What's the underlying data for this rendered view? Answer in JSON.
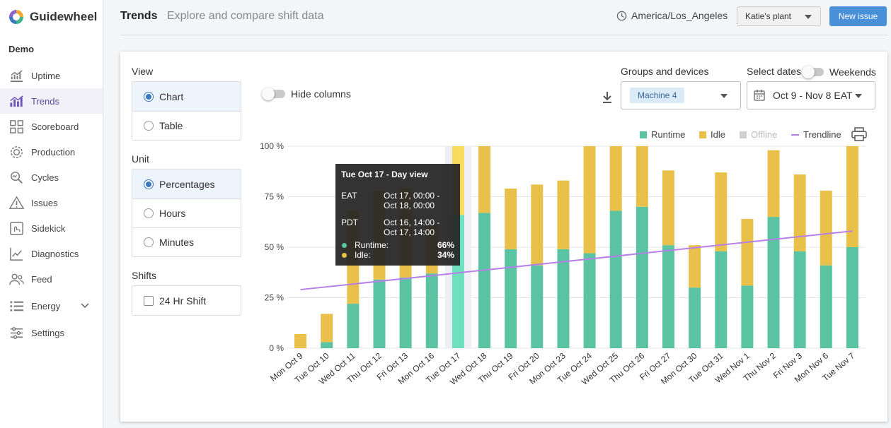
{
  "app": {
    "name": "Guidewheel",
    "org": "Demo"
  },
  "nav": [
    {
      "label": "Uptime",
      "icon": "uptime-icon"
    },
    {
      "label": "Trends",
      "icon": "trends-icon",
      "active": true
    },
    {
      "label": "Scoreboard",
      "icon": "scoreboard-icon"
    },
    {
      "label": "Production",
      "icon": "production-icon"
    },
    {
      "label": "Cycles",
      "icon": "cycles-icon"
    },
    {
      "label": "Issues",
      "icon": "issues-icon"
    },
    {
      "label": "Sidekick",
      "icon": "sidekick-icon"
    },
    {
      "label": "Diagnostics",
      "icon": "diagnostics-icon"
    },
    {
      "label": "Feed",
      "icon": "feed-icon"
    },
    {
      "label": "Energy",
      "icon": "energy-icon"
    },
    {
      "label": "Settings",
      "icon": "settings-icon"
    }
  ],
  "header": {
    "title": "Trends",
    "subtitle": "Explore and compare shift data",
    "timezone": "America/Los_Angeles",
    "plant": "Katie's plant",
    "new_issue": "New issue"
  },
  "controls": {
    "view_label": "View",
    "view_options": [
      "Chart",
      "Table"
    ],
    "unit_label": "Unit",
    "unit_options": [
      "Percentages",
      "Hours",
      "Minutes"
    ],
    "shifts_label": "Shifts",
    "shift_option": "24 Hr Shift",
    "hide_columns": "Hide columns",
    "groups_label": "Groups and devices",
    "device_chip": "Machine 4",
    "dates_label": "Select dates",
    "weekends": "Weekends",
    "date_range": "Oct 9 - Nov 8 EAT"
  },
  "colors": {
    "runtime": "#5ac3a1",
    "idle": "#e9c14a",
    "offline": "#d0d0d0",
    "trendline": "#b77fe8",
    "highlight_runtime": "#6fe0bd",
    "highlight_idle": "#f7dc5c",
    "accent": "#4a90d9"
  },
  "tooltip": {
    "title": "Tue Oct 17 - Day view",
    "tz1": "EAT",
    "tz1_range_a": "Oct 17, 00:00 -",
    "tz1_range_b": "Oct 18, 00:00",
    "tz2": "PDT",
    "tz2_range_a": "Oct 16, 14:00 -",
    "tz2_range_b": "Oct 17, 14:00",
    "runtime_label": "Runtime:",
    "runtime_value": "66%",
    "idle_label": "Idle:",
    "idle_value": "34%"
  },
  "chart_data": {
    "type": "bar",
    "stacked": true,
    "categories": [
      "Mon Oct 9",
      "Tue Oct 10",
      "Wed Oct 11",
      "Thu Oct 12",
      "Fri Oct 13",
      "Mon Oct 16",
      "Tue Oct 17",
      "Wed Oct 18",
      "Thu Oct 19",
      "Fri Oct 20",
      "Mon Oct 23",
      "Tue Oct 24",
      "Wed Oct 25",
      "Thu Oct 26",
      "Fri Oct 27",
      "Mon Oct 30",
      "Tue Oct 31",
      "Wed Nov 1",
      "Thu Nov 2",
      "Fri Nov 3",
      "Mon Nov 6",
      "Tue Nov 7"
    ],
    "series": [
      {
        "name": "Runtime",
        "values": [
          0,
          3,
          22,
          34,
          35,
          37,
          66,
          67,
          49,
          41,
          49,
          47,
          68,
          70,
          51,
          30,
          48,
          31,
          65,
          48,
          41,
          50
        ]
      },
      {
        "name": "Idle",
        "values": [
          7,
          14,
          46,
          44,
          44,
          24,
          34,
          33,
          30,
          40,
          34,
          53,
          32,
          30,
          37,
          21,
          39,
          33,
          33,
          38,
          37,
          50
        ]
      },
      {
        "name": "Offline",
        "values": [
          0,
          0,
          0,
          0,
          0,
          0,
          0,
          0,
          0,
          0,
          0,
          0,
          0,
          0,
          0,
          0,
          0,
          0,
          0,
          0,
          0,
          0
        ]
      }
    ],
    "trendline": {
      "name": "Trendline",
      "start": 29,
      "end": 58
    },
    "highlighted": "Tue Oct 17",
    "yticks": [
      "0 %",
      "25 %",
      "50 %",
      "75 %",
      "100 %"
    ],
    "ylim": [
      0,
      100
    ],
    "legend": [
      "Runtime",
      "Idle",
      "Offline",
      "Trendline"
    ],
    "legend_position": "top-right"
  }
}
